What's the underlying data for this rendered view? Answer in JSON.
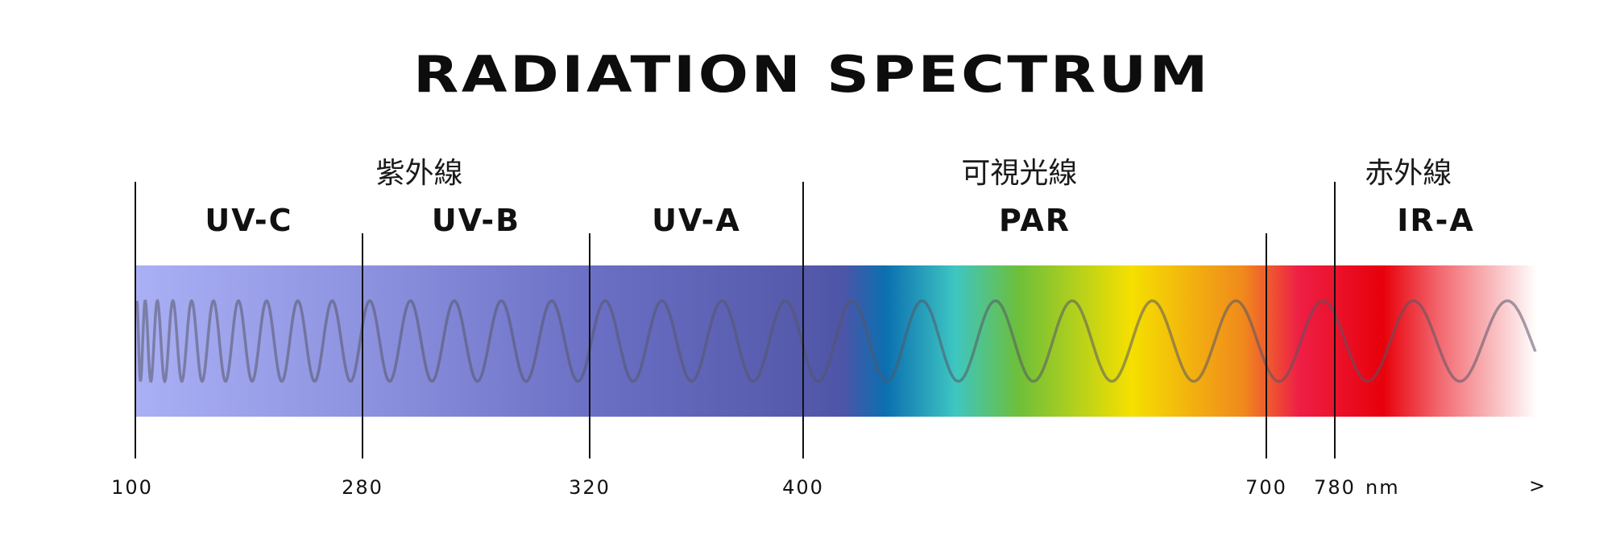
{
  "title": "RADIATION SPECTRUM",
  "groups": [
    {
      "label": "紫外線",
      "center_nm": 290
    },
    {
      "label": "可視光線",
      "center_nm": 540
    },
    {
      "label": "赤外線",
      "center_nm": 860
    }
  ],
  "bands": [
    {
      "label": "UV-C",
      "from_nm": 100,
      "to_nm": 280
    },
    {
      "label": "UV-B",
      "from_nm": 280,
      "to_nm": 320
    },
    {
      "label": "UV-A",
      "from_nm": 320,
      "to_nm": 400
    },
    {
      "label": "PAR",
      "from_nm": 400,
      "to_nm": 700
    },
    {
      "label": "IR-A",
      "from_nm": 780,
      "to_nm": 1000
    }
  ],
  "ticks": [
    {
      "label": "100",
      "nm": 100
    },
    {
      "label": "280",
      "nm": 280
    },
    {
      "label": "320",
      "nm": 320
    },
    {
      "label": "400",
      "nm": 400
    },
    {
      "label": "700",
      "nm": 700
    },
    {
      "label": "780",
      "nm": 780
    }
  ],
  "unit": "nm",
  "arrow": ">",
  "colors": {
    "uv_start": "#aab0f5",
    "uv_end": "#5055a8",
    "blue": "#0b6fb0",
    "cyan": "#3ec6c2",
    "green": "#6dbf3a",
    "yellow": "#f5e000",
    "orange": "#f08a1c",
    "red": "#e8002a",
    "wave": "#555566"
  }
}
